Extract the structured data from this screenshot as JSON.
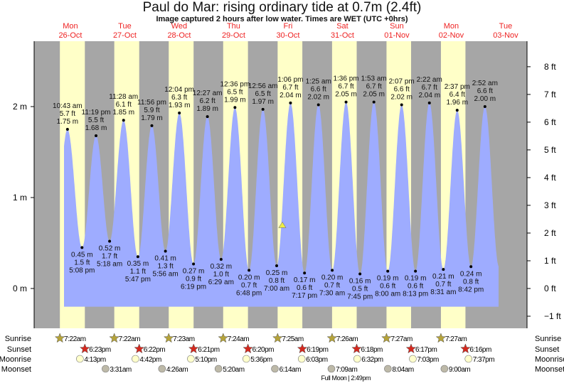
{
  "title": "Paul do Mar: rising  ordinary tide at 0.7m (2.4ft)",
  "subtitle": "Image captured 2 hours after low water. Times are WET (UTC +0hrs)",
  "colors": {
    "day": "#ffffc8",
    "night": "#a6a6a6",
    "water": "#9eacff",
    "date_label": "#ee2222",
    "sunrise": "#b5a33a",
    "sunset": "#d4281e",
    "moonrise": "#ffffcc",
    "moonset": "#bdb9a8",
    "marker": "#eeee44"
  },
  "chart_data": {
    "type": "area",
    "title": "Paul do Mar: rising  ordinary tide at 0.7m (2.4ft)",
    "left_axis": {
      "unit": "m",
      "ticks": [
        "2 m",
        "1 m",
        "0 m"
      ],
      "values": [
        2,
        1,
        0
      ],
      "range_m": [
        -0.42,
        2.74
      ]
    },
    "right_axis": {
      "unit": "ft",
      "ticks": [
        "8 ft",
        "7 ft",
        "6 ft",
        "5 ft",
        "4 ft",
        "3 ft",
        "2 ft",
        "1 ft",
        "0 ft",
        "−1 ft"
      ],
      "values": [
        8,
        7,
        6,
        5,
        4,
        3,
        2,
        1,
        0,
        -1
      ]
    },
    "days": [
      {
        "dow": "Mon",
        "date": "26-Oct"
      },
      {
        "dow": "Tue",
        "date": "27-Oct"
      },
      {
        "dow": "Wed",
        "date": "28-Oct"
      },
      {
        "dow": "Thu",
        "date": "29-Oct"
      },
      {
        "dow": "Fri",
        "date": "30-Oct"
      },
      {
        "dow": "Sat",
        "date": "31-Oct"
      },
      {
        "dow": "Sun",
        "date": "01-Nov"
      },
      {
        "dow": "Mon",
        "date": "02-Nov"
      },
      {
        "dow": "Tue",
        "date": "03-Nov"
      }
    ],
    "current_level_m": 0.7,
    "current_time": {
      "day": 4,
      "time": "9:00 am"
    },
    "extremes": [
      {
        "type": "high",
        "day": 0,
        "time": "10:43 am",
        "m": "1.75 m",
        "ft": "5.7 ft",
        "value": 1.75
      },
      {
        "type": "low",
        "day": 0,
        "time": "5:08 pm",
        "m": "0.45 m",
        "ft": "1.5 ft",
        "value": 0.45
      },
      {
        "type": "high",
        "day": 0,
        "time": "11:19 pm",
        "m": "1.68 m",
        "ft": "5.5 ft",
        "value": 1.68
      },
      {
        "type": "low",
        "day": 1,
        "time": "5:18 am",
        "m": "0.52 m",
        "ft": "1.7 ft",
        "value": 0.52
      },
      {
        "type": "high",
        "day": 1,
        "time": "11:28 am",
        "m": "1.85 m",
        "ft": "6.1 ft",
        "value": 1.85
      },
      {
        "type": "low",
        "day": 1,
        "time": "5:47 pm",
        "m": "0.35 m",
        "ft": "1.1 ft",
        "value": 0.35
      },
      {
        "type": "high",
        "day": 1,
        "time": "11:56 pm",
        "m": "1.79 m",
        "ft": "5.9 ft",
        "value": 1.79
      },
      {
        "type": "low",
        "day": 2,
        "time": "5:56 am",
        "m": "0.41 m",
        "ft": "1.3 ft",
        "value": 0.41
      },
      {
        "type": "high",
        "day": 2,
        "time": "12:04 pm",
        "m": "1.93 m",
        "ft": "6.3 ft",
        "value": 1.93
      },
      {
        "type": "low",
        "day": 2,
        "time": "6:19 pm",
        "m": "0.27 m",
        "ft": "0.9 ft",
        "value": 0.27
      },
      {
        "type": "high",
        "day": 3,
        "time": "12:27 am",
        "m": "1.89 m",
        "ft": "6.2 ft",
        "value": 1.89
      },
      {
        "type": "low",
        "day": 3,
        "time": "6:29 am",
        "m": "0.32 m",
        "ft": "1.0 ft",
        "value": 0.32
      },
      {
        "type": "high",
        "day": 3,
        "time": "12:36 pm",
        "m": "1.99 m",
        "ft": "6.5 ft",
        "value": 1.99
      },
      {
        "type": "low",
        "day": 3,
        "time": "6:48 pm",
        "m": "0.20 m",
        "ft": "0.7 ft",
        "value": 0.2
      },
      {
        "type": "high",
        "day": 4,
        "time": "12:56 am",
        "m": "1.97 m",
        "ft": "6.5 ft",
        "value": 1.97
      },
      {
        "type": "low",
        "day": 4,
        "time": "7:00 am",
        "m": "0.25 m",
        "ft": "0.8 ft",
        "value": 0.25
      },
      {
        "type": "high",
        "day": 4,
        "time": "1:06 pm",
        "m": "2.04 m",
        "ft": "6.7 ft",
        "value": 2.04
      },
      {
        "type": "low",
        "day": 4,
        "time": "7:17 pm",
        "m": "0.17 m",
        "ft": "0.6 ft",
        "value": 0.17
      },
      {
        "type": "high",
        "day": 5,
        "time": "1:25 am",
        "m": "2.02 m",
        "ft": "6.6 ft",
        "value": 2.02
      },
      {
        "type": "low",
        "day": 5,
        "time": "7:30 am",
        "m": "0.20 m",
        "ft": "0.7 ft",
        "value": 0.2
      },
      {
        "type": "high",
        "day": 5,
        "time": "1:36 pm",
        "m": "2.05 m",
        "ft": "6.7 ft",
        "value": 2.05
      },
      {
        "type": "low",
        "day": 5,
        "time": "7:45 pm",
        "m": "0.16 m",
        "ft": "0.5 ft",
        "value": 0.16
      },
      {
        "type": "high",
        "day": 6,
        "time": "1:53 am",
        "m": "2.05 m",
        "ft": "6.7 ft",
        "value": 2.05
      },
      {
        "type": "low",
        "day": 6,
        "time": "8:00 am",
        "m": "0.19 m",
        "ft": "0.6 ft",
        "value": 0.19
      },
      {
        "type": "high",
        "day": 6,
        "time": "2:07 pm",
        "m": "2.02 m",
        "ft": "6.6 ft",
        "value": 2.02
      },
      {
        "type": "low",
        "day": 6,
        "time": "8:13 pm",
        "m": "0.19 m",
        "ft": "0.6 ft",
        "value": 0.19
      },
      {
        "type": "high",
        "day": 7,
        "time": "2:22 am",
        "m": "2.04 m",
        "ft": "6.7 ft",
        "value": 2.04
      },
      {
        "type": "low",
        "day": 7,
        "time": "8:31 am",
        "m": "0.21 m",
        "ft": "0.7 ft",
        "value": 0.21
      },
      {
        "type": "high",
        "day": 7,
        "time": "2:37 pm",
        "m": "1.96 m",
        "ft": "6.4 ft",
        "value": 1.96
      },
      {
        "type": "low",
        "day": 7,
        "time": "8:42 pm",
        "m": "0.24 m",
        "ft": "0.8 ft",
        "value": 0.24
      },
      {
        "type": "high",
        "day": 8,
        "time": "2:52 am",
        "m": "2.00 m",
        "ft": "6.6 ft",
        "value": 2.0
      }
    ]
  },
  "astro": {
    "labels": {
      "sunrise": "Sunrise",
      "sunset": "Sunset",
      "moonrise": "Moonrise",
      "moonset": "Moonset"
    },
    "sunrise": [
      {
        "day": 0,
        "time": "7:22am"
      },
      {
        "day": 1,
        "time": "7:22am"
      },
      {
        "day": 2,
        "time": "7:23am"
      },
      {
        "day": 3,
        "time": "7:24am"
      },
      {
        "day": 4,
        "time": "7:25am"
      },
      {
        "day": 5,
        "time": "7:26am"
      },
      {
        "day": 6,
        "time": "7:27am"
      },
      {
        "day": 7,
        "time": "7:27am"
      }
    ],
    "sunset": [
      {
        "day": 0,
        "time": "6:23pm"
      },
      {
        "day": 1,
        "time": "6:22pm"
      },
      {
        "day": 2,
        "time": "6:21pm"
      },
      {
        "day": 3,
        "time": "6:20pm"
      },
      {
        "day": 4,
        "time": "6:19pm"
      },
      {
        "day": 5,
        "time": "6:18pm"
      },
      {
        "day": 6,
        "time": "6:17pm"
      },
      {
        "day": 7,
        "time": "6:16pm"
      }
    ],
    "moonrise": [
      {
        "day": 0,
        "time": "4:13pm"
      },
      {
        "day": 1,
        "time": "4:42pm"
      },
      {
        "day": 2,
        "time": "5:10pm"
      },
      {
        "day": 3,
        "time": "5:36pm"
      },
      {
        "day": 4,
        "time": "6:03pm"
      },
      {
        "day": 5,
        "time": "6:32pm"
      },
      {
        "day": 6,
        "time": "7:03pm"
      },
      {
        "day": 7,
        "time": "7:37pm"
      }
    ],
    "moonset": [
      {
        "day": 1,
        "time": "3:31am"
      },
      {
        "day": 2,
        "time": "4:26am"
      },
      {
        "day": 3,
        "time": "5:20am"
      },
      {
        "day": 4,
        "time": "6:14am"
      },
      {
        "day": 5,
        "time": "7:09am"
      },
      {
        "day": 6,
        "time": "8:04am"
      },
      {
        "day": 7,
        "time": "9:00am"
      }
    ],
    "full_moon": {
      "label": "Full Moon",
      "day": 5,
      "time": "2:49pm"
    }
  }
}
